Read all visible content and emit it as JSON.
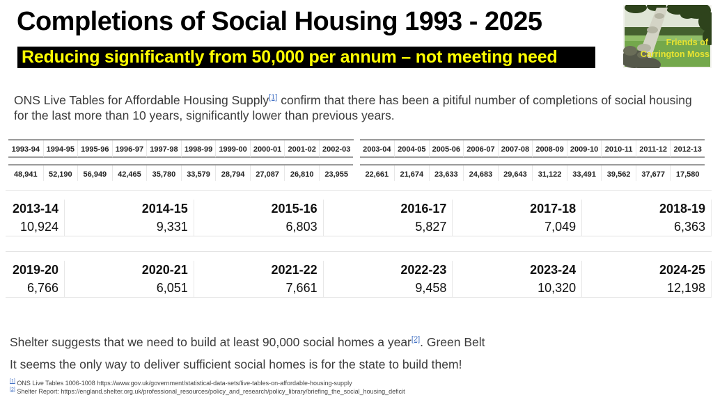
{
  "title": "Completions of Social Housing 1993 - 2025",
  "banner": {
    "text": "Reducing significantly from 50,000 per annum – not meeting need",
    "bg_color": "#000000",
    "text_color": "#ffff00"
  },
  "logo": {
    "line1": "Friends of",
    "line2": "Carrington Moss",
    "caption_color": "#e8e431"
  },
  "intro": {
    "text_before_ref": "ONS Live Tables for Affordable Housing Supply",
    "ref_label": "[1]",
    "text_after_ref": " confirm that there has been a pitiful number of completions of social housing for the last more than 10 years, significantly lower than previous years."
  },
  "tables": {
    "row1_left": {
      "years": [
        "1993-94",
        "1994-95",
        "1995-96",
        "1996-97",
        "1997-98",
        "1998-99",
        "1999-00",
        "2000-01",
        "2001-02",
        "2002-03"
      ],
      "values": [
        "48,941",
        "52,190",
        "56,949",
        "42,465",
        "35,780",
        "33,579",
        "28,794",
        "27,087",
        "26,810",
        "23,955"
      ]
    },
    "row1_right": {
      "years": [
        "2003-04",
        "2004-05",
        "2005-06",
        "2006-07",
        "2007-08",
        "2008-09",
        "2009-10",
        "2010-11",
        "2011-12",
        "2012-13"
      ],
      "values": [
        "22,661",
        "21,674",
        "23,633",
        "24,683",
        "29,643",
        "31,122",
        "33,491",
        "39,562",
        "37,677",
        "17,580"
      ]
    },
    "row2": {
      "years": [
        "2013-14",
        "2014-15",
        "2015-16",
        "2016-17",
        "2017-18",
        "2018-19"
      ],
      "values": [
        "10,924",
        "9,331",
        "6,803",
        "5,827",
        "7,049",
        "6,363"
      ]
    },
    "row3": {
      "years": [
        "2019-20",
        "2020-21",
        "2021-22",
        "2022-23",
        "2023-24",
        "2024-25"
      ],
      "values": [
        "6,766",
        "6,051",
        "7,661",
        "9,458",
        "10,320",
        "12,198"
      ]
    }
  },
  "shelter": {
    "text_before_ref": "Shelter suggests that we need to build at least 90,000 social homes a year",
    "ref_label": "[2]",
    "text_after_ref": ". Green Belt"
  },
  "conclusion": "It seems the only way to deliver sufficient social homes is for the state to build them!",
  "footnotes": [
    {
      "marker": "[1]",
      "text": "ONS Live Tables 1006-1008  https://www.gov.uk/government/statistical-data-sets/live-tables-on-affordable-housing-supply"
    },
    {
      "marker": "[2]",
      "text": "Shelter Report:  https://england.shelter.org.uk/professional_resources/policy_and_research/policy_library/briefing_the_social_housing_deficit"
    }
  ],
  "colors": {
    "ref_link": "#4472c4",
    "table_rule": "#9a9a9a",
    "faint_grid": "#e7e7e7"
  }
}
